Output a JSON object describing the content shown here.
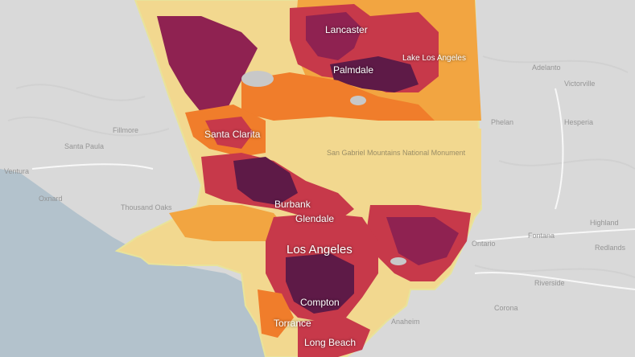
{
  "map": {
    "city_labels": {
      "lancaster": "Lancaster",
      "palmdale": "Palmdale",
      "lake_los_angeles": "Lake Los Angeles",
      "santa_clarita": "Santa Clarita",
      "burbank": "Burbank",
      "glendale": "Glendale",
      "los_angeles": "Los Angeles",
      "compton": "Compton",
      "torrance": "Torrance",
      "long_beach": "Long Beach"
    },
    "forest_label": "San Gabriel Mountains National Monument",
    "outside_labels": {
      "santa_paula": "Santa Paula",
      "fillmore": "Fillmore",
      "ventura": "Ventura",
      "oxnard": "Oxnard",
      "thousand_oaks": "Thousand Oaks",
      "ontario": "Ontario",
      "fontana": "Fontana",
      "riverside": "Riverside",
      "corona": "Corona",
      "anaheim": "Anaheim",
      "adelanto": "Adelanto",
      "victorville": "Victorville",
      "hesperia": "Hesperia",
      "phelan": "Phelan",
      "highland": "Highland",
      "redlands": "Redlands"
    },
    "colors": {
      "ocean": "#b3c2cc",
      "land": "#d9d9d9",
      "county_outline": "#e8e39b",
      "low": "#f2d88f",
      "medium_low": "#f2a541",
      "medium": "#f07d2b",
      "high": "#c7394a",
      "higher": "#8f2251",
      "highest": "#5e1a47",
      "water": "#c8c8c8"
    }
  }
}
